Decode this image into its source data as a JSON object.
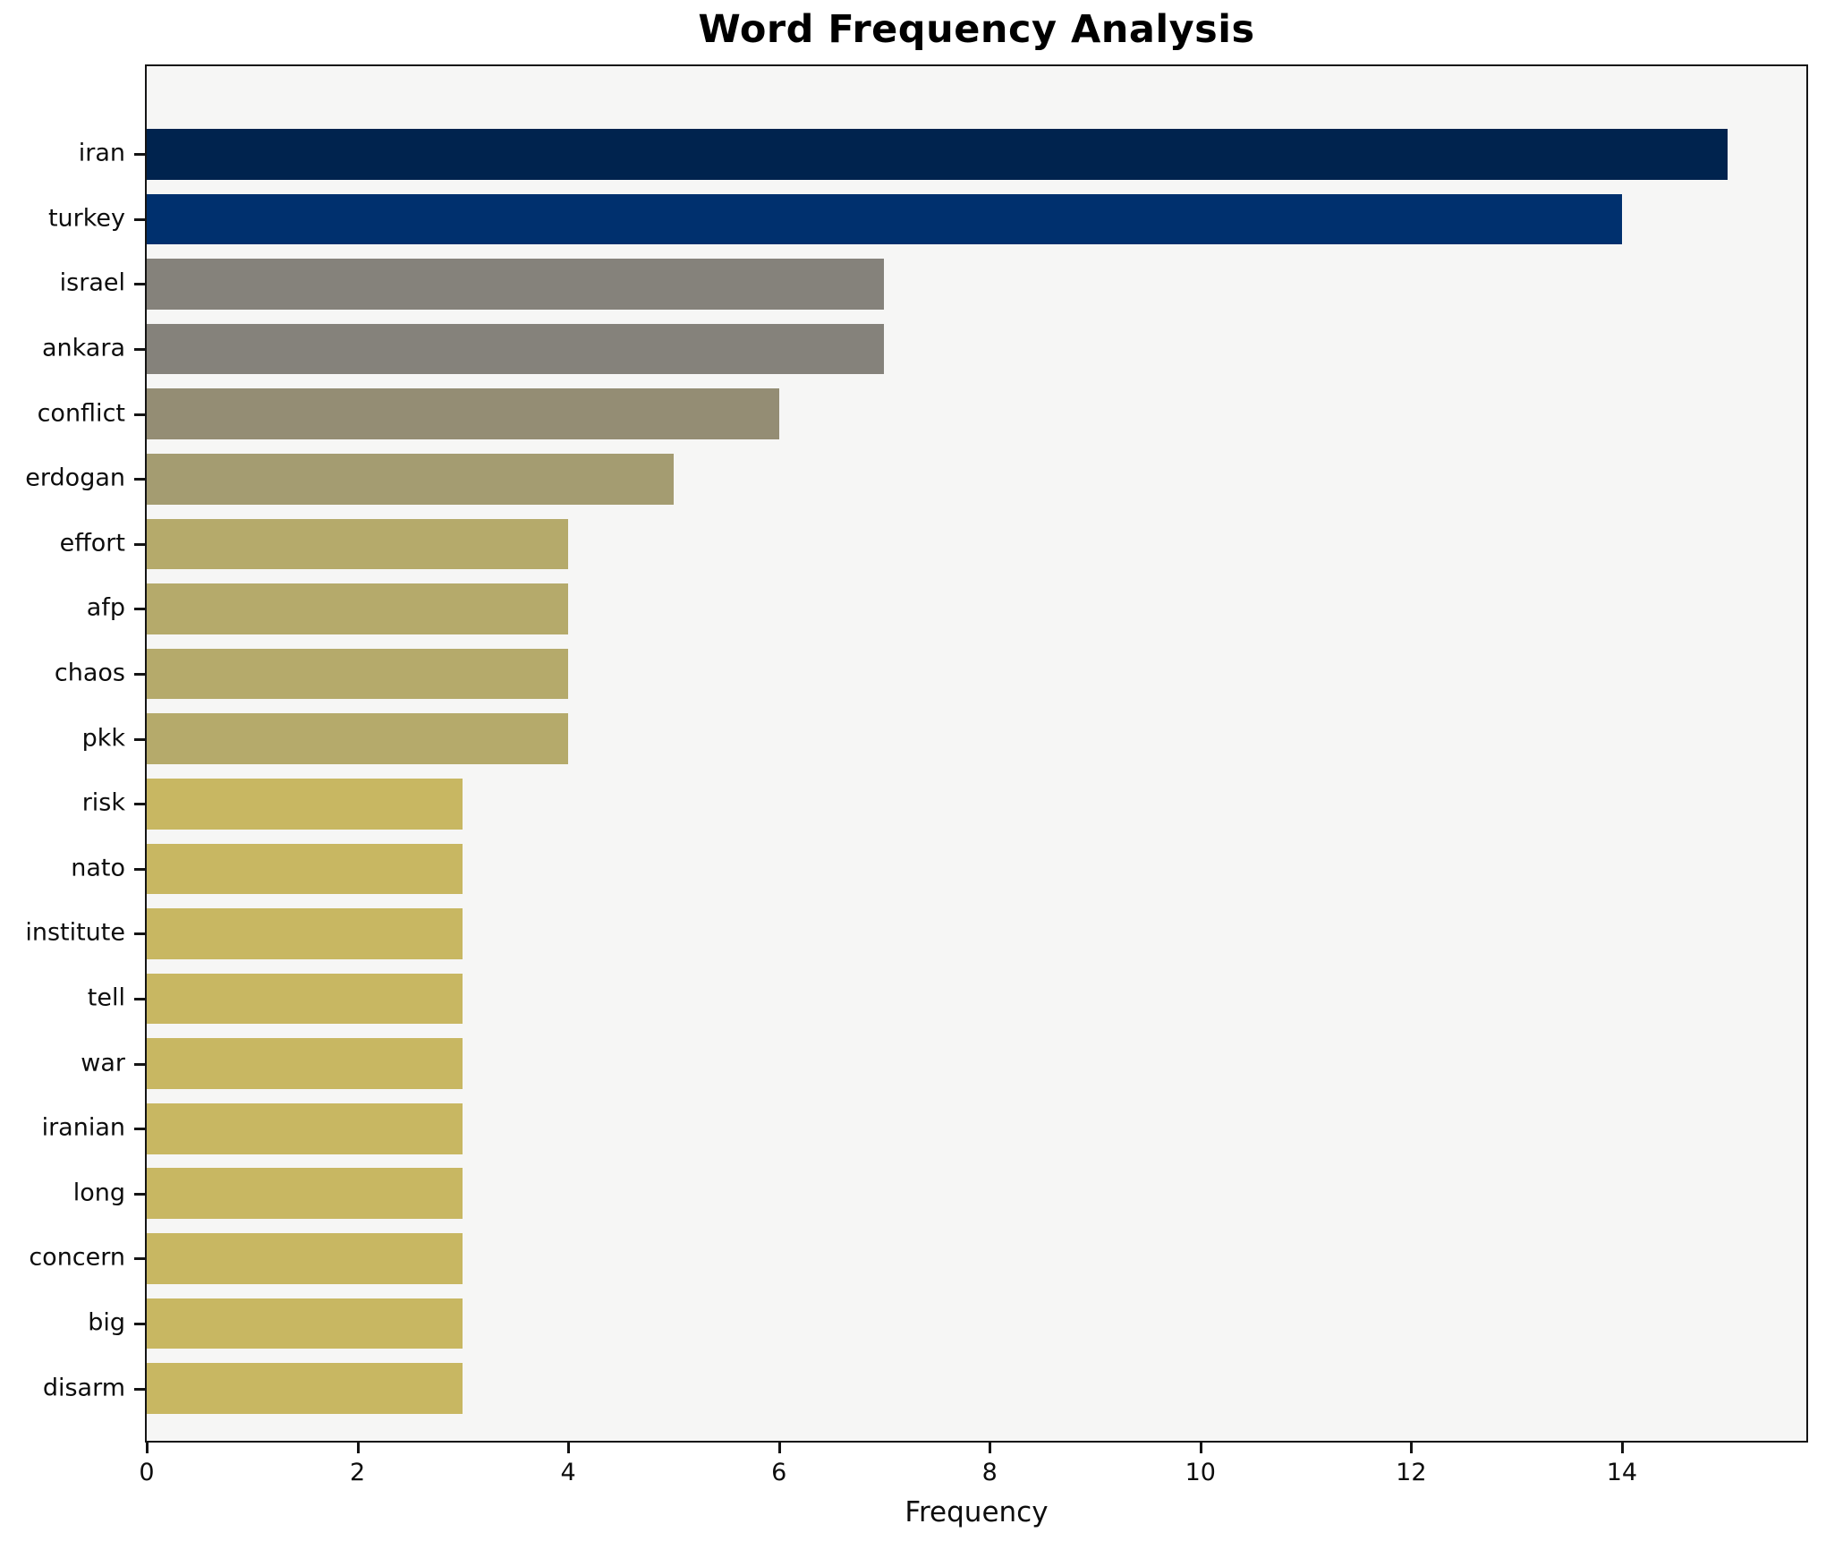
{
  "title": "Word Frequency Analysis",
  "xlabel": "Frequency",
  "chart_data": {
    "type": "bar",
    "orientation": "horizontal",
    "title": "Word Frequency Analysis",
    "xlabel": "Frequency",
    "ylabel": "",
    "categories": [
      "iran",
      "turkey",
      "israel",
      "ankara",
      "conflict",
      "erdogan",
      "effort",
      "afp",
      "chaos",
      "pkk",
      "risk",
      "nato",
      "institute",
      "tell",
      "war",
      "iranian",
      "long",
      "concern",
      "big",
      "disarm"
    ],
    "values": [
      15,
      14,
      7,
      7,
      6,
      5,
      4,
      4,
      4,
      4,
      3,
      3,
      3,
      3,
      3,
      3,
      3,
      3,
      3,
      3
    ],
    "bar_colors": [
      "#00234e",
      "#00306e",
      "#85827b",
      "#85827b",
      "#948d74",
      "#a49c71",
      "#b5aa6b",
      "#b5aa6b",
      "#b5aa6b",
      "#b5aa6b",
      "#c8b762",
      "#c8b762",
      "#c8b762",
      "#c8b762",
      "#c8b762",
      "#c8b762",
      "#c8b762",
      "#c8b762",
      "#c8b762",
      "#c8b762"
    ],
    "xlim": [
      0,
      15.75
    ],
    "xticks": [
      0,
      2,
      4,
      6,
      8,
      10,
      12,
      14
    ],
    "grid": false,
    "legend": false,
    "plot_background": "#f6f6f5",
    "figure_background": "#ffffff",
    "frame_color": "#141414"
  }
}
